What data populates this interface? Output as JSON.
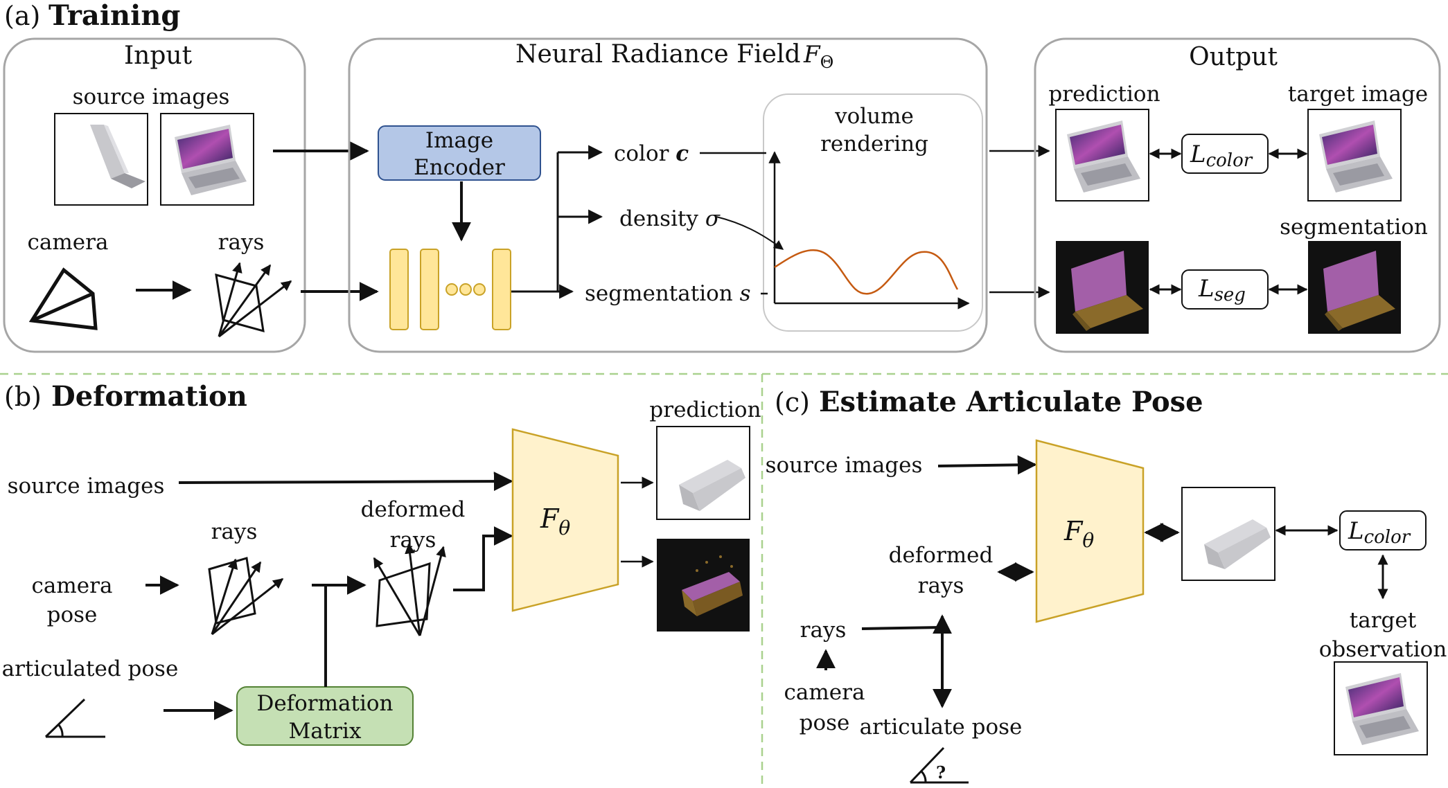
{
  "panel_a": {
    "prefix": "(a)",
    "title": "Training",
    "input": {
      "title": "Input",
      "source_images_label": "source images",
      "camera_label": "camera",
      "rays_label": "rays"
    },
    "nerf": {
      "title": "Neural Radiance Field",
      "symbol": "F",
      "symbol_sub": "Θ",
      "encoder_line1": "Image",
      "encoder_line2": "Encoder",
      "color_label": "color",
      "color_symbol": "c",
      "density_label": "density",
      "density_symbol": "σ",
      "seg_label": "segmentation",
      "seg_symbol": "s",
      "render_line1": "volume",
      "render_line2": "rendering"
    },
    "output": {
      "title": "Output",
      "prediction_label": "prediction",
      "target_label": "target image",
      "segmentation_label": "segmentation",
      "loss_color_main": "L",
      "loss_color_sub": "color",
      "loss_seg_main": "L",
      "loss_seg_sub": "seg"
    }
  },
  "panel_b": {
    "prefix": "(b)",
    "title": "Deformation",
    "source_images_label": "source images",
    "rays_label": "rays",
    "deformed_line1": "deformed",
    "deformed_line2": "rays",
    "camera_line1": "camera",
    "camera_line2": "pose",
    "articulated_label": "articulated  pose",
    "deform_line1": "Deformation",
    "deform_line2": "Matrix",
    "f_main": "F",
    "f_sub": "θ",
    "prediction_label": "prediction"
  },
  "panel_c": {
    "prefix": "(c)",
    "title": "Estimate Articulate Pose",
    "source_images_label": "source images",
    "deformed_line1": "deformed",
    "deformed_line2": "rays",
    "rays_label": "rays",
    "camera_line1": "camera",
    "camera_line2": "pose",
    "articulate_label": "articulate  pose",
    "question": "?",
    "f_main": "F",
    "f_sub": "θ",
    "loss_main": "L",
    "loss_sub": "color",
    "target_line1": "target",
    "target_line2": "observation"
  },
  "colors": {
    "encoder_fill": "#b4c7e7",
    "encoder_stroke": "#2f528f",
    "mlp_fill": "#ffe699",
    "mlp_stroke": "#c9a227",
    "deform_fill": "#c5e0b4",
    "deform_stroke": "#548235",
    "f_fill": "#fff2cc",
    "f_stroke": "#c9a227",
    "curve": "#c55a11",
    "divider": "#a9d18e",
    "panel_stroke": "#a6a6a6"
  }
}
